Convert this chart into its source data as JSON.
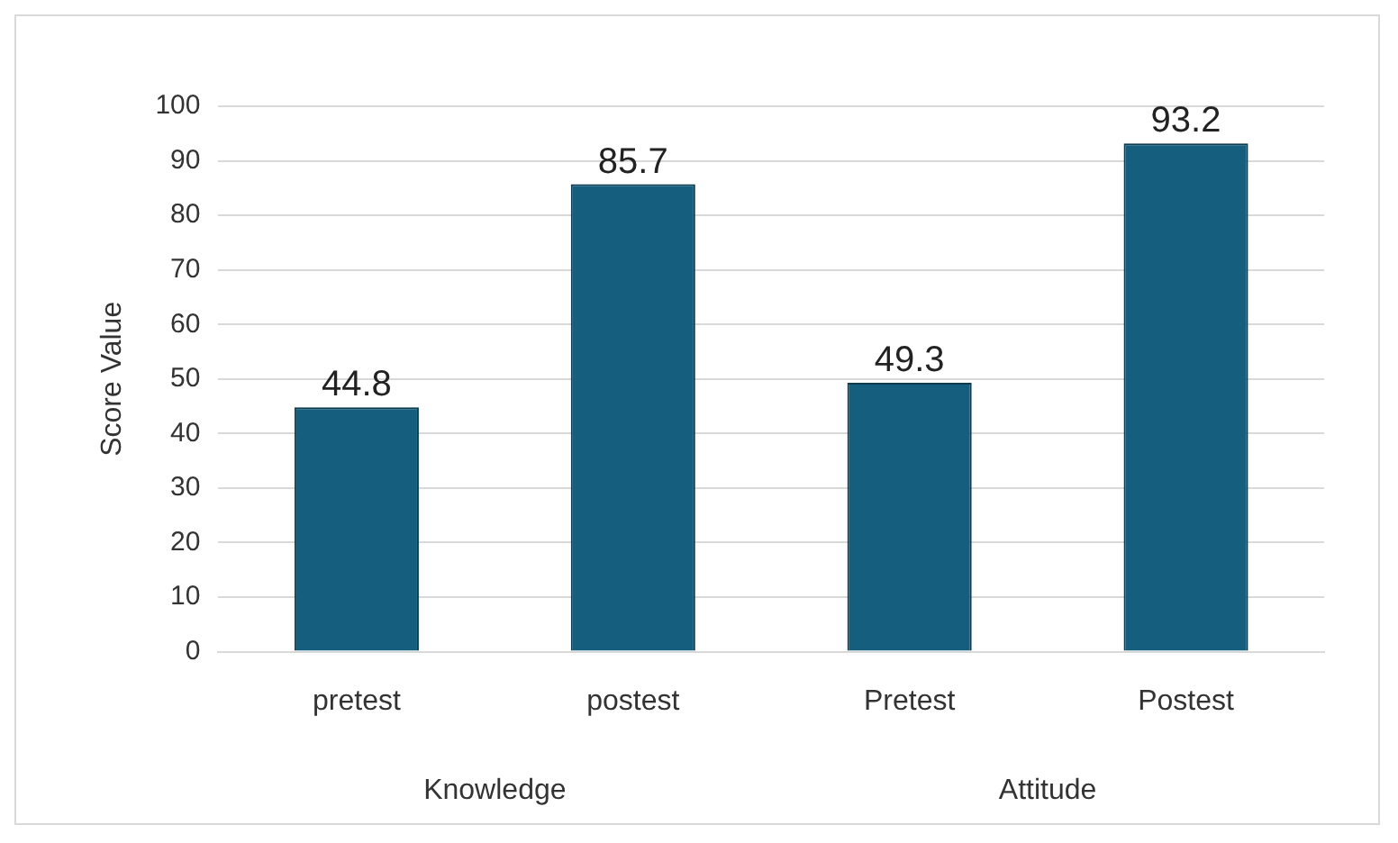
{
  "chart_data": {
    "type": "bar",
    "ylabel": "Score Value",
    "categories": [
      "pretest",
      "postest",
      "Pretest",
      "Postest"
    ],
    "values": [
      44.8,
      85.7,
      49.3,
      93.2
    ],
    "color": "#155e7e",
    "ylim": [
      0,
      100
    ],
    "yticks": [
      0,
      10,
      20,
      30,
      40,
      50,
      60,
      70,
      80,
      90,
      100
    ],
    "grid": "y",
    "data_labels": true,
    "annotations": [
      "Knowledge",
      "Attitude"
    ]
  }
}
